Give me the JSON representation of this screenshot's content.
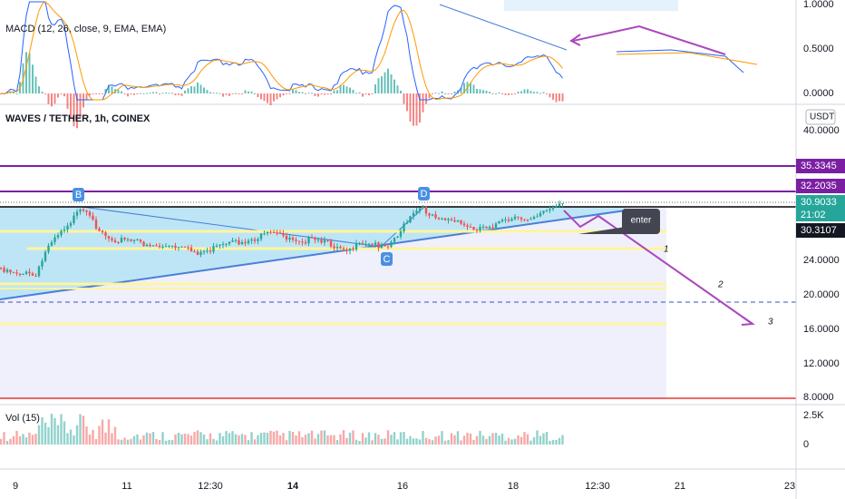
{
  "macd": {
    "title": "MACD (12, 26, close, 9, EMA, EMA)",
    "axis": [
      "1.0000",
      "0.5000",
      "0.0000"
    ]
  },
  "main": {
    "title": "WAVES / TETHER, 1h, COINEX",
    "currency": "USDT",
    "axis": [
      "40.0000",
      "24.0000",
      "20.0000",
      "16.0000",
      "12.0000",
      "8.0000"
    ],
    "tags": {
      "upper": "35.3345",
      "mid": "32.2035",
      "last": "30.9033",
      "countdown": "21:02",
      "low": "30.3107"
    },
    "points": [
      "B",
      "D",
      "C"
    ],
    "note": "enter",
    "targets": [
      "1",
      "2",
      "3"
    ]
  },
  "volume": {
    "title": "Vol (15)",
    "axis": [
      "2.5K",
      "0"
    ]
  },
  "xaxis": [
    "9",
    "11",
    "12:30",
    "14",
    "16",
    "18",
    "12:30",
    "21",
    "23"
  ]
}
